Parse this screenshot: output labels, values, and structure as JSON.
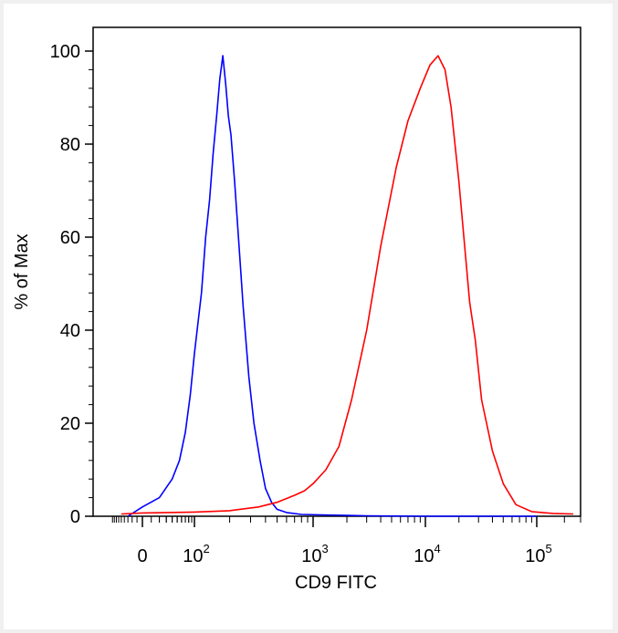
{
  "chart_data": {
    "type": "line",
    "xlabel": "CD9 FITC",
    "ylabel": "% of Max",
    "x_scale": "biexponential",
    "ylim": [
      0,
      100
    ],
    "grid": false,
    "legend": "none",
    "y_ticks": [
      "0",
      "20",
      "40",
      "60",
      "80",
      "100"
    ],
    "x_ticks": [
      {
        "base": "0",
        "exp": ""
      },
      {
        "base": "10",
        "exp": "2"
      },
      {
        "base": "10",
        "exp": "3"
      },
      {
        "base": "10",
        "exp": "4"
      },
      {
        "base": "10",
        "exp": "5"
      }
    ],
    "series": [
      {
        "color": "#0000ff",
        "x": [
          -30,
          0,
          20,
          40,
          55,
          70,
          85,
          100,
          115,
          125,
          135,
          145,
          155,
          165,
          175,
          185,
          195,
          205,
          220,
          240,
          260,
          290,
          320,
          360,
          400,
          450,
          500,
          600,
          800,
          1200,
          2000,
          3000,
          10000,
          100000
        ],
        "y": [
          0,
          2,
          4,
          8,
          12,
          18,
          26,
          35,
          48,
          60,
          68,
          78,
          86,
          94,
          99,
          93,
          86,
          82,
          72,
          58,
          45,
          30,
          20,
          12,
          6,
          3,
          1.5,
          0.8,
          0.4,
          0.3,
          0.2,
          0.1,
          0,
          0
        ]
      },
      {
        "color": "#ff0000",
        "x": [
          -50,
          0,
          100,
          200,
          350,
          500,
          700,
          850,
          1000,
          1300,
          1700,
          2200,
          3000,
          4000,
          5500,
          7000,
          9000,
          11000,
          13000,
          15000,
          17000,
          20000,
          25000,
          28000,
          32000,
          40000,
          50000,
          65000,
          90000,
          150000,
          250000
        ],
        "y": [
          0.5,
          0.7,
          0.9,
          1.2,
          2.0,
          3.0,
          4.5,
          5.5,
          7,
          10,
          15,
          25,
          40,
          58,
          75,
          85,
          92,
          97,
          99,
          96,
          88,
          72,
          46,
          38,
          25,
          14,
          7,
          2.5,
          1,
          0.6,
          0.5
        ]
      }
    ]
  }
}
